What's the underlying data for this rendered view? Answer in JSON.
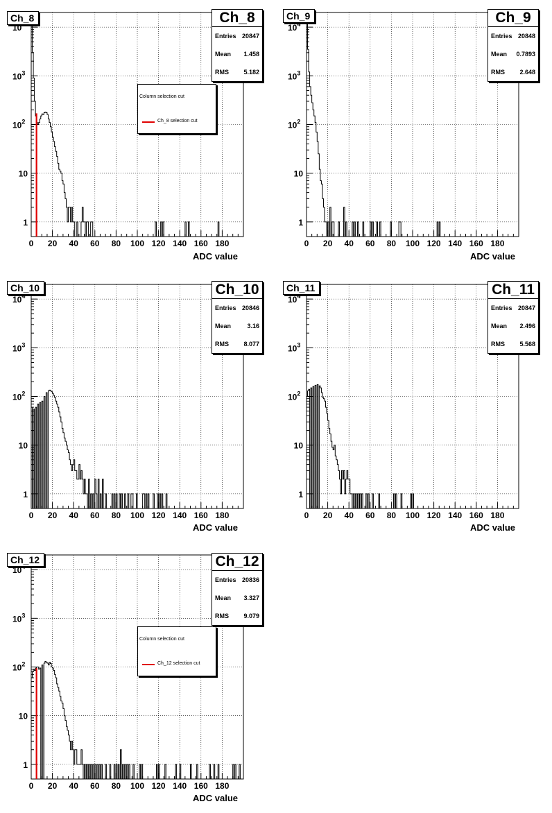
{
  "charts": [
    {
      "type": "bar",
      "title": "Ch_8",
      "stats_name": "Ch_8",
      "stats": [
        {
          "label": "Entries",
          "value": "20847"
        },
        {
          "label": "Mean",
          "value": "1.458"
        },
        {
          "label": "RMS",
          "value": "5.182"
        }
      ],
      "xlabel": "ADC value",
      "xlim": [
        0,
        200
      ],
      "ylim": [
        0.5,
        20000
      ],
      "log_y": true,
      "xticks": [
        "0",
        "20",
        "40",
        "60",
        "80",
        "100",
        "120",
        "140",
        "160",
        "180"
      ],
      "yticks": [
        "1",
        "10",
        "10^2",
        "10^3",
        "10^4"
      ],
      "grid": true,
      "legend": {
        "header": "Column selection cut",
        "entry": "Ch_8 selection cut",
        "color": "#e00000"
      },
      "cut_x": 5,
      "cut_y": 170,
      "peak_x": 0.5,
      "peak_y": 15000,
      "bins": [
        [
          0,
          15000
        ],
        [
          1,
          3000
        ],
        [
          2,
          900
        ],
        [
          3,
          300
        ],
        [
          4,
          150
        ],
        [
          5,
          110
        ],
        [
          6,
          100
        ],
        [
          7,
          110
        ],
        [
          8,
          130
        ],
        [
          9,
          150
        ],
        [
          10,
          165
        ],
        [
          11,
          160
        ],
        [
          12,
          175
        ],
        [
          13,
          180
        ],
        [
          14,
          175
        ],
        [
          15,
          160
        ],
        [
          16,
          130
        ],
        [
          17,
          110
        ],
        [
          18,
          90
        ],
        [
          19,
          70
        ],
        [
          20,
          55
        ],
        [
          21,
          45
        ],
        [
          22,
          35
        ],
        [
          23,
          28
        ],
        [
          24,
          22
        ],
        [
          25,
          16
        ],
        [
          26,
          12
        ],
        [
          27,
          11
        ],
        [
          28,
          10
        ],
        [
          29,
          7
        ],
        [
          30,
          6
        ],
        [
          31,
          4
        ],
        [
          32,
          3
        ],
        [
          33,
          2
        ],
        [
          34,
          1
        ],
        [
          35,
          2
        ],
        [
          36,
          2
        ],
        [
          37,
          1
        ],
        [
          38,
          2
        ],
        [
          39,
          1
        ],
        [
          40,
          1
        ],
        [
          43,
          1
        ],
        [
          47,
          1
        ],
        [
          48,
          2
        ],
        [
          49,
          1
        ],
        [
          50,
          1
        ],
        [
          52,
          1
        ],
        [
          53,
          1
        ],
        [
          56,
          1
        ],
        [
          57,
          1
        ],
        [
          117,
          1
        ],
        [
          122,
          1
        ],
        [
          124,
          1
        ],
        [
          145,
          1
        ],
        [
          148,
          1
        ],
        [
          176,
          1
        ]
      ]
    },
    {
      "type": "bar",
      "title": "Ch_9",
      "stats_name": "Ch_9",
      "stats": [
        {
          "label": "Entries",
          "value": "20848"
        },
        {
          "label": "Mean",
          "value": "0.7893"
        },
        {
          "label": "RMS",
          "value": "2.648"
        }
      ],
      "xlabel": "ADC value",
      "xlim": [
        0,
        200
      ],
      "ylim": [
        0.5,
        20000
      ],
      "log_y": true,
      "xticks": [
        "0",
        "20",
        "40",
        "60",
        "80",
        "100",
        "120",
        "140",
        "160",
        "180"
      ],
      "yticks": [
        "1",
        "10",
        "10^2",
        "10^3",
        "10^4"
      ],
      "grid": true,
      "peak_x": 0.5,
      "peak_y": 16000,
      "bins": [
        [
          0,
          16000
        ],
        [
          1,
          3500
        ],
        [
          2,
          1200
        ],
        [
          3,
          600
        ],
        [
          4,
          400
        ],
        [
          5,
          280
        ],
        [
          6,
          200
        ],
        [
          7,
          150
        ],
        [
          8,
          110
        ],
        [
          9,
          70
        ],
        [
          10,
          45
        ],
        [
          11,
          25
        ],
        [
          12,
          12
        ],
        [
          13,
          7
        ],
        [
          14,
          6
        ],
        [
          15,
          3
        ],
        [
          16,
          2
        ],
        [
          17,
          1
        ],
        [
          18,
          1
        ],
        [
          20,
          1
        ],
        [
          22,
          2
        ],
        [
          24,
          1
        ],
        [
          25,
          1
        ],
        [
          30,
          1
        ],
        [
          35,
          2
        ],
        [
          37,
          1
        ],
        [
          43,
          1
        ],
        [
          45,
          1
        ],
        [
          48,
          1
        ],
        [
          53,
          1
        ],
        [
          60,
          1
        ],
        [
          62,
          1
        ],
        [
          66,
          1
        ],
        [
          69,
          1
        ],
        [
          79,
          1
        ],
        [
          87,
          1
        ],
        [
          88,
          1
        ],
        [
          123,
          1
        ],
        [
          125,
          1
        ]
      ]
    },
    {
      "type": "bar",
      "title": "Ch_10",
      "stats_name": "Ch_10",
      "stats": [
        {
          "label": "Entries",
          "value": "20846"
        },
        {
          "label": "Mean",
          "value": "3.16"
        },
        {
          "label": "RMS",
          "value": "8.077"
        }
      ],
      "xlabel": "ADC value",
      "xlim": [
        0,
        200
      ],
      "ylim": [
        0.5,
        20000
      ],
      "log_y": true,
      "xticks": [
        "0",
        "20",
        "40",
        "60",
        "80",
        "100",
        "120",
        "140",
        "160",
        "180"
      ],
      "yticks": [
        "1",
        "10",
        "10^2",
        "10^3",
        "10^4"
      ],
      "grid": true,
      "bins": [
        [
          0,
          60
        ],
        [
          2,
          55
        ],
        [
          4,
          60
        ],
        [
          6,
          70
        ],
        [
          8,
          75
        ],
        [
          10,
          80
        ],
        [
          12,
          100
        ],
        [
          14,
          120
        ],
        [
          16,
          130
        ],
        [
          17,
          135
        ],
        [
          18,
          130
        ],
        [
          19,
          125
        ],
        [
          20,
          115
        ],
        [
          21,
          105
        ],
        [
          22,
          95
        ],
        [
          23,
          80
        ],
        [
          24,
          70
        ],
        [
          25,
          60
        ],
        [
          26,
          48
        ],
        [
          27,
          38
        ],
        [
          28,
          30
        ],
        [
          29,
          22
        ],
        [
          30,
          18
        ],
        [
          31,
          14
        ],
        [
          32,
          12
        ],
        [
          33,
          10
        ],
        [
          34,
          8
        ],
        [
          35,
          7
        ],
        [
          36,
          5
        ],
        [
          37,
          4
        ],
        [
          38,
          3
        ],
        [
          39,
          4
        ],
        [
          40,
          5
        ],
        [
          41,
          3
        ],
        [
          42,
          3
        ],
        [
          43,
          2
        ],
        [
          44,
          2
        ],
        [
          45,
          4
        ],
        [
          46,
          2
        ],
        [
          47,
          3
        ],
        [
          48,
          2
        ],
        [
          49,
          1
        ],
        [
          50,
          2
        ],
        [
          51,
          1
        ],
        [
          52,
          1
        ],
        [
          54,
          2
        ],
        [
          56,
          1
        ],
        [
          58,
          1
        ],
        [
          60,
          2
        ],
        [
          61,
          1
        ],
        [
          63,
          2
        ],
        [
          65,
          1
        ],
        [
          67,
          2
        ],
        [
          70,
          1
        ],
        [
          76,
          1
        ],
        [
          78,
          1
        ],
        [
          80,
          1
        ],
        [
          83,
          1
        ],
        [
          85,
          1
        ],
        [
          88,
          1
        ],
        [
          91,
          1
        ],
        [
          94,
          1
        ],
        [
          95,
          1
        ],
        [
          99,
          1
        ],
        [
          105,
          1
        ],
        [
          106,
          1
        ],
        [
          108,
          1
        ],
        [
          110,
          1
        ],
        [
          115,
          1
        ],
        [
          119,
          1
        ],
        [
          121,
          1
        ],
        [
          123,
          1
        ],
        [
          127,
          1
        ]
      ]
    },
    {
      "type": "bar",
      "title": "Ch_11",
      "stats_name": "Ch_11",
      "stats": [
        {
          "label": "Entries",
          "value": "20847"
        },
        {
          "label": "Mean",
          "value": "2.496"
        },
        {
          "label": "RMS",
          "value": "5.568"
        }
      ],
      "xlabel": "ADC value",
      "xlim": [
        0,
        200
      ],
      "ylim": [
        0.5,
        20000
      ],
      "log_y": true,
      "xticks": [
        "0",
        "20",
        "40",
        "60",
        "80",
        "100",
        "120",
        "140",
        "160",
        "180"
      ],
      "yticks": [
        "1",
        "10",
        "10^2",
        "10^3",
        "10^4"
      ],
      "grid": true,
      "bins": [
        [
          0,
          100
        ],
        [
          1,
          130
        ],
        [
          2,
          140
        ],
        [
          4,
          150
        ],
        [
          6,
          160
        ],
        [
          8,
          170
        ],
        [
          10,
          175
        ],
        [
          12,
          165
        ],
        [
          13,
          150
        ],
        [
          14,
          120
        ],
        [
          15,
          95
        ],
        [
          16,
          90
        ],
        [
          17,
          80
        ],
        [
          18,
          60
        ],
        [
          19,
          45
        ],
        [
          20,
          32
        ],
        [
          21,
          22
        ],
        [
          22,
          17
        ],
        [
          23,
          12
        ],
        [
          24,
          9
        ],
        [
          25,
          8
        ],
        [
          26,
          10
        ],
        [
          27,
          6
        ],
        [
          28,
          5
        ],
        [
          29,
          4
        ],
        [
          30,
          3
        ],
        [
          31,
          2
        ],
        [
          32,
          1
        ],
        [
          33,
          3
        ],
        [
          34,
          2
        ],
        [
          35,
          3
        ],
        [
          36,
          1
        ],
        [
          37,
          2
        ],
        [
          38,
          3
        ],
        [
          39,
          2
        ],
        [
          40,
          2
        ],
        [
          41,
          1
        ],
        [
          42,
          1
        ],
        [
          44,
          1
        ],
        [
          46,
          1
        ],
        [
          48,
          1
        ],
        [
          50,
          1
        ],
        [
          52,
          1
        ],
        [
          56,
          1
        ],
        [
          58,
          1
        ],
        [
          62,
          1
        ],
        [
          68,
          1
        ],
        [
          82,
          1
        ],
        [
          84,
          1
        ],
        [
          89,
          1
        ],
        [
          98,
          1
        ],
        [
          100,
          1
        ]
      ]
    },
    {
      "type": "bar",
      "title": "Ch_12",
      "stats_name": "Ch_12",
      "stats": [
        {
          "label": "Entries",
          "value": "20836"
        },
        {
          "label": "Mean",
          "value": "3.327"
        },
        {
          "label": "RMS",
          "value": "9.079"
        }
      ],
      "xlabel": "ADC value",
      "xlim": [
        0,
        200
      ],
      "ylim": [
        0.5,
        20000
      ],
      "log_y": true,
      "xticks": [
        "0",
        "20",
        "40",
        "60",
        "80",
        "100",
        "120",
        "140",
        "160",
        "180"
      ],
      "yticks": [
        "1",
        "10",
        "10^2",
        "10^3",
        "10^4"
      ],
      "grid": true,
      "legend": {
        "header": "Column selection cut",
        "entry": "Ch_12 selection cut",
        "color": "#e00000"
      },
      "cut_x": 5,
      "cut_y": 95,
      "bins": [
        [
          0,
          60
        ],
        [
          1,
          80
        ],
        [
          2,
          90
        ],
        [
          3,
          85
        ],
        [
          4,
          95
        ],
        [
          5,
          100
        ],
        [
          6,
          100
        ],
        [
          7,
          90
        ],
        [
          8,
          95
        ],
        [
          10,
          110
        ],
        [
          12,
          120
        ],
        [
          13,
          130
        ],
        [
          14,
          125
        ],
        [
          15,
          120
        ],
        [
          16,
          110
        ],
        [
          17,
          125
        ],
        [
          18,
          118
        ],
        [
          19,
          100
        ],
        [
          20,
          95
        ],
        [
          21,
          85
        ],
        [
          22,
          70
        ],
        [
          23,
          60
        ],
        [
          24,
          45
        ],
        [
          25,
          38
        ],
        [
          26,
          32
        ],
        [
          27,
          25
        ],
        [
          28,
          20
        ],
        [
          29,
          18
        ],
        [
          30,
          14
        ],
        [
          31,
          10
        ],
        [
          32,
          8
        ],
        [
          33,
          6
        ],
        [
          34,
          5
        ],
        [
          35,
          4
        ],
        [
          36,
          3
        ],
        [
          37,
          2
        ],
        [
          38,
          3
        ],
        [
          39,
          2
        ],
        [
          40,
          1
        ],
        [
          41,
          2
        ],
        [
          42,
          2
        ],
        [
          43,
          1
        ],
        [
          44,
          1
        ],
        [
          45,
          1
        ],
        [
          46,
          1
        ],
        [
          47,
          2
        ],
        [
          48,
          1
        ],
        [
          50,
          1
        ],
        [
          52,
          1
        ],
        [
          54,
          1
        ],
        [
          56,
          1
        ],
        [
          58,
          1
        ],
        [
          60,
          1
        ],
        [
          62,
          1
        ],
        [
          64,
          1
        ],
        [
          66,
          1
        ],
        [
          70,
          1
        ],
        [
          74,
          1
        ],
        [
          78,
          1
        ],
        [
          80,
          1
        ],
        [
          82,
          1
        ],
        [
          84,
          2
        ],
        [
          86,
          1
        ],
        [
          88,
          1
        ],
        [
          90,
          1
        ],
        [
          92,
          1
        ],
        [
          96,
          1
        ],
        [
          102,
          1
        ],
        [
          104,
          1
        ],
        [
          118,
          1
        ],
        [
          120,
          1
        ],
        [
          126,
          1
        ],
        [
          136,
          1
        ],
        [
          140,
          1
        ],
        [
          150,
          1
        ],
        [
          156,
          1
        ],
        [
          168,
          1
        ],
        [
          172,
          1
        ],
        [
          176,
          1
        ],
        [
          190,
          1
        ],
        [
          192,
          1
        ],
        [
          196,
          1
        ]
      ]
    }
  ],
  "footer_note": ""
}
